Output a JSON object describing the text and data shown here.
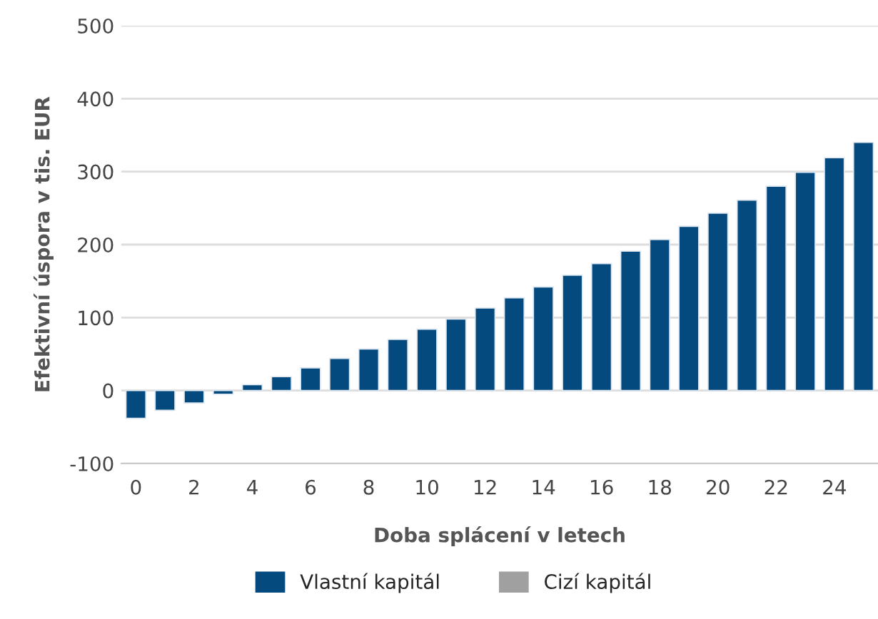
{
  "chart_data": {
    "type": "bar",
    "xlabel": "Doba splácení v letech",
    "ylabel": "Efektivní úspora v tis. EUR",
    "categories": [
      "0",
      null,
      "2",
      null,
      "4",
      null,
      "6",
      null,
      "8",
      null,
      "10",
      null,
      "12",
      null,
      "14",
      null,
      "16",
      null,
      "18",
      null,
      "20",
      null,
      "22",
      null,
      "24",
      null
    ],
    "series": [
      {
        "name": "Vlastní kapitál",
        "color": "#044a7f",
        "values": [
          -38,
          -27,
          -17,
          -5,
          8,
          19,
          31,
          44,
          57,
          70,
          84,
          98,
          113,
          127,
          142,
          158,
          174,
          191,
          207,
          225,
          243,
          261,
          280,
          299,
          319,
          340
        ]
      },
      {
        "name": "Cizí kapitál",
        "color": "#a0a0a0",
        "values": [
          null,
          null,
          null,
          null,
          null,
          null,
          null,
          null,
          null,
          null,
          null,
          null,
          null,
          null,
          null,
          null,
          null,
          null,
          null,
          null,
          null,
          null,
          null,
          null,
          null,
          null
        ]
      }
    ],
    "ylim": [
      -100,
      500
    ],
    "yticks": [
      -100,
      0,
      100,
      200,
      300,
      400,
      500
    ],
    "grid": "y",
    "legend": "bottom"
  }
}
